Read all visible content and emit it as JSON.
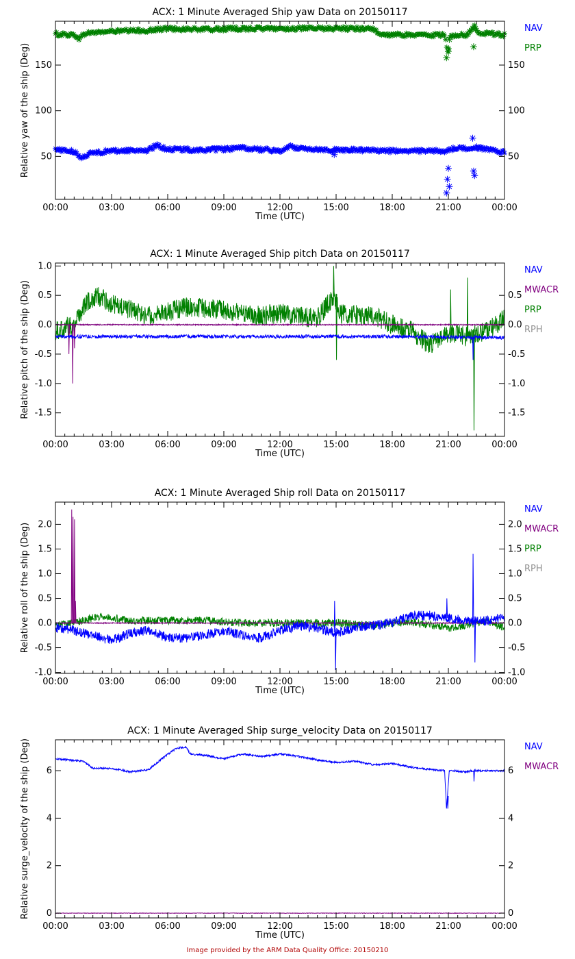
{
  "footer": "Image provided by the ARM Data Quality Office: 20150210",
  "chart_data": [
    {
      "type": "scatter",
      "title": "ACX: 1 Minute Averaged Ship yaw Data on 20150117",
      "xlabel": "Time (UTC)",
      "ylabel": "Relative yaw of the ship (Deg)",
      "xlim": [
        0,
        24
      ],
      "ylim": [
        3,
        198
      ],
      "xticks": [
        "00:00",
        "03:00",
        "06:00",
        "09:00",
        "12:00",
        "15:00",
        "18:00",
        "21:00",
        "00:00"
      ],
      "yticks": [
        50,
        100,
        150
      ],
      "ytick_labels": [
        "50",
        "100",
        "150"
      ],
      "right_ticks": [
        50,
        100,
        150
      ],
      "right_tick_labels": [
        "50",
        "100",
        "150"
      ],
      "legend": [
        "NAV",
        "PRP"
      ],
      "series": [
        {
          "name": "PRP",
          "color": "#008000",
          "marker": "star",
          "noise": 2,
          "points": [
            [
              0,
              184
            ],
            [
              1,
              183
            ],
            [
              1.3,
              179
            ],
            [
              1.6,
              185
            ],
            [
              3,
              187
            ],
            [
              5,
              188
            ],
            [
              6,
              190
            ],
            [
              8,
              189
            ],
            [
              10,
              190
            ],
            [
              12,
              190
            ],
            [
              13,
              190
            ],
            [
              15,
              190
            ],
            [
              17,
              190
            ],
            [
              17.3,
              183
            ],
            [
              19,
              183
            ],
            [
              20.8,
              183
            ],
            [
              21,
              160
            ],
            [
              21.1,
              183
            ],
            [
              22,
              183
            ],
            [
              22.4,
              192
            ],
            [
              22.6,
              186
            ],
            [
              24,
              183
            ]
          ],
          "outliers": [
            [
              20.9,
              158
            ],
            [
              21.0,
              165
            ],
            [
              21.05,
              178
            ],
            [
              22.35,
              170
            ],
            [
              22.4,
              192
            ]
          ]
        },
        {
          "name": "NAV",
          "color": "#0000ff",
          "marker": "star",
          "noise": 2,
          "points": [
            [
              0,
              58
            ],
            [
              1,
              55
            ],
            [
              1.3,
              49
            ],
            [
              2,
              54
            ],
            [
              3,
              56
            ],
            [
              5,
              57
            ],
            [
              5.4,
              62
            ],
            [
              6,
              58
            ],
            [
              8,
              57
            ],
            [
              10,
              59
            ],
            [
              12,
              56
            ],
            [
              12.6,
              61
            ],
            [
              13,
              59
            ],
            [
              15,
              57
            ],
            [
              17,
              57
            ],
            [
              18,
              56
            ],
            [
              20.8,
              56
            ],
            [
              21.1,
              58
            ],
            [
              22.4,
              60
            ],
            [
              24,
              54
            ]
          ],
          "outliers": [
            [
              14.9,
              52
            ],
            [
              20.9,
              10
            ],
            [
              20.95,
              25
            ],
            [
              21.0,
              37
            ],
            [
              21.05,
              17
            ],
            [
              22.3,
              70
            ],
            [
              22.35,
              34
            ],
            [
              22.4,
              29
            ]
          ]
        }
      ]
    },
    {
      "type": "line",
      "title": "ACX: 1 Minute Averaged Ship pitch Data on 20150117",
      "xlabel": "Time (UTC)",
      "ylabel": "Relative pitch of the ship (Deg)",
      "xlim": [
        0,
        24
      ],
      "ylim": [
        -1.9,
        1.05
      ],
      "xticks": [
        "00:00",
        "03:00",
        "06:00",
        "09:00",
        "12:00",
        "15:00",
        "18:00",
        "21:00",
        "00:00"
      ],
      "yticks": [
        1.0,
        0.5,
        0.0,
        -0.5,
        -1.0,
        -1.5
      ],
      "ytick_labels": [
        "1.0",
        "0.5",
        "0.0",
        "-0.5",
        "-1.0",
        "-1.5"
      ],
      "right_ticks": [
        0.5,
        0.0,
        -0.5,
        -1.0,
        -1.5
      ],
      "right_tick_labels": [
        "0.5",
        "0.0",
        "-0.5",
        "-1.0",
        "-1.5"
      ],
      "legend": [
        "NAV",
        "MWACR",
        "PRP",
        "RPH"
      ],
      "series": [
        {
          "name": "RPH",
          "color": "#909090",
          "noise": 0,
          "points": [
            [
              0,
              0
            ],
            [
              24,
              0
            ]
          ]
        },
        {
          "name": "PRP",
          "color": "#008000",
          "noise": 0.17,
          "points": [
            [
              0,
              -0.1
            ],
            [
              0.5,
              -0.05
            ],
            [
              1,
              0
            ],
            [
              1.6,
              0.35
            ],
            [
              2.2,
              0.5
            ],
            [
              3,
              0.35
            ],
            [
              5,
              0.15
            ],
            [
              7,
              0.3
            ],
            [
              9,
              0.25
            ],
            [
              11,
              0.15
            ],
            [
              12,
              0.2
            ],
            [
              14,
              0.1
            ],
            [
              14.9,
              0.5
            ],
            [
              15.2,
              0.2
            ],
            [
              17,
              0.15
            ],
            [
              18,
              0
            ],
            [
              19,
              -0.1
            ],
            [
              20,
              -0.35
            ],
            [
              21,
              -0.15
            ],
            [
              22,
              -0.2
            ],
            [
              23,
              -0.1
            ],
            [
              24,
              0.1
            ]
          ],
          "spikes": [
            [
              14.85,
              1.0
            ],
            [
              15.0,
              -0.6
            ],
            [
              21.1,
              0.6
            ],
            [
              22.0,
              0.8
            ],
            [
              22.35,
              -1.8
            ]
          ]
        },
        {
          "name": "MWACR",
          "color": "#800080",
          "noise": 0.01,
          "points": [
            [
              0,
              0
            ],
            [
              24,
              0
            ]
          ],
          "spikes": [
            [
              0.9,
              -1.0
            ],
            [
              1.0,
              -0.4
            ],
            [
              0.7,
              -0.5
            ]
          ]
        },
        {
          "name": "NAV",
          "color": "#0000ff",
          "noise": 0.03,
          "points": [
            [
              0,
              -0.2
            ],
            [
              6,
              -0.2
            ],
            [
              12,
              -0.2
            ],
            [
              18,
              -0.2
            ],
            [
              24,
              -0.22
            ]
          ],
          "spikes": [
            [
              22.3,
              -0.6
            ]
          ]
        }
      ]
    },
    {
      "type": "line",
      "title": "ACX: 1 Minute Averaged Ship roll Data on 20150117",
      "xlabel": "Time (UTC)",
      "ylabel": "Relative roll of the ship (Deg)",
      "xlim": [
        0,
        24
      ],
      "ylim": [
        -1.02,
        2.45
      ],
      "xticks": [
        "00:00",
        "03:00",
        "06:00",
        "09:00",
        "12:00",
        "15:00",
        "18:00",
        "21:00",
        "00:00"
      ],
      "yticks": [
        2.0,
        1.5,
        1.0,
        0.5,
        0.0,
        -0.5,
        -1.0
      ],
      "ytick_labels": [
        "2.0",
        "1.5",
        "1.0",
        "0.5",
        "0.0",
        "-0.5",
        "-1.0"
      ],
      "right_ticks": [
        2.0,
        1.5,
        1.0,
        0.5,
        0.0,
        -0.5,
        -1.0
      ],
      "right_tick_labels": [
        "2.0",
        "1.5",
        "1.0",
        "0.5",
        "0.0",
        "-0.5",
        "-1.0"
      ],
      "legend": [
        "NAV",
        "MWACR",
        "PRP",
        "RPH"
      ],
      "series": [
        {
          "name": "RPH",
          "color": "#909090",
          "noise": 0,
          "points": [
            [
              0,
              0
            ],
            [
              24,
              0
            ]
          ]
        },
        {
          "name": "PRP",
          "color": "#008000",
          "noise": 0.08,
          "points": [
            [
              0,
              -0.05
            ],
            [
              1.5,
              0.05
            ],
            [
              2.5,
              0.15
            ],
            [
              4,
              0.05
            ],
            [
              6,
              0.05
            ],
            [
              8,
              0.05
            ],
            [
              10,
              0
            ],
            [
              12,
              0
            ],
            [
              15,
              0
            ],
            [
              17,
              -0.05
            ],
            [
              18,
              0
            ],
            [
              19,
              0.02
            ],
            [
              21,
              -0.1
            ],
            [
              22,
              -0.05
            ],
            [
              23,
              0.05
            ],
            [
              24,
              -0.1
            ]
          ]
        },
        {
          "name": "MWACR",
          "color": "#800080",
          "noise": 0.01,
          "points": [
            [
              0,
              0
            ],
            [
              24,
              0
            ]
          ],
          "spikes": [
            [
              0.85,
              2.3
            ],
            [
              0.92,
              2.15
            ],
            [
              1.0,
              2.1
            ],
            [
              1.05,
              0.45
            ]
          ]
        },
        {
          "name": "NAV",
          "color": "#0000ff",
          "noise": 0.1,
          "points": [
            [
              0,
              -0.1
            ],
            [
              1,
              -0.15
            ],
            [
              2,
              -0.25
            ],
            [
              3,
              -0.35
            ],
            [
              4,
              -0.2
            ],
            [
              5,
              -0.15
            ],
            [
              6,
              -0.3
            ],
            [
              7,
              -0.3
            ],
            [
              8,
              -0.25
            ],
            [
              9,
              -0.15
            ],
            [
              10,
              -0.25
            ],
            [
              11,
              -0.3
            ],
            [
              12,
              -0.15
            ],
            [
              13,
              -0.05
            ],
            [
              14,
              -0.1
            ],
            [
              15,
              -0.2
            ],
            [
              16,
              -0.1
            ],
            [
              17,
              -0.05
            ],
            [
              18,
              0
            ],
            [
              19,
              0.15
            ],
            [
              20,
              0.15
            ],
            [
              21,
              0.1
            ],
            [
              22,
              0.05
            ],
            [
              23,
              0.05
            ],
            [
              24,
              0.1
            ]
          ],
          "spikes": [
            [
              14.9,
              0.45
            ],
            [
              14.95,
              -0.95
            ],
            [
              20.9,
              0.5
            ],
            [
              22.3,
              1.4
            ],
            [
              22.4,
              -0.8
            ]
          ]
        }
      ]
    },
    {
      "type": "line",
      "title": "ACX: 1 Minute Averaged Ship surge_velocity Data on 20150117",
      "xlabel": "Time (UTC)",
      "ylabel": "Relative surge_velocity of the ship (Deg)",
      "xlim": [
        0,
        24
      ],
      "ylim": [
        -0.2,
        7.3
      ],
      "xticks": [
        "00:00",
        "03:00",
        "06:00",
        "09:00",
        "12:00",
        "15:00",
        "18:00",
        "21:00",
        "00:00"
      ],
      "yticks": [
        0,
        2,
        4,
        6
      ],
      "ytick_labels": [
        "0",
        "2",
        "4",
        "6"
      ],
      "right_ticks": [
        0,
        2,
        4,
        6
      ],
      "right_tick_labels": [
        "0",
        "2",
        "4",
        "6"
      ],
      "legend": [
        "NAV",
        "MWACR"
      ],
      "series": [
        {
          "name": "MWACR",
          "color": "#800080",
          "noise": 0.01,
          "points": [
            [
              0,
              0
            ],
            [
              24,
              0
            ]
          ]
        },
        {
          "name": "NAV",
          "color": "#0000ff",
          "noise": 0.04,
          "points": [
            [
              0,
              6.5
            ],
            [
              1.5,
              6.4
            ],
            [
              2,
              6.1
            ],
            [
              3,
              6.1
            ],
            [
              4,
              5.95
            ],
            [
              5,
              6.05
            ],
            [
              6,
              6.7
            ],
            [
              6.5,
              6.95
            ],
            [
              7,
              7.0
            ],
            [
              7.2,
              6.7
            ],
            [
              8,
              6.65
            ],
            [
              9,
              6.5
            ],
            [
              10,
              6.7
            ],
            [
              11,
              6.6
            ],
            [
              12,
              6.7
            ],
            [
              13,
              6.6
            ],
            [
              14,
              6.45
            ],
            [
              15,
              6.35
            ],
            [
              16,
              6.4
            ],
            [
              17,
              6.25
            ],
            [
              18,
              6.3
            ],
            [
              19,
              6.15
            ],
            [
              20,
              6.05
            ],
            [
              20.8,
              6.0
            ],
            [
              20.9,
              4.4
            ],
            [
              21.05,
              6.0
            ],
            [
              22,
              5.95
            ],
            [
              22.3,
              6.0
            ],
            [
              24,
              6.0
            ]
          ],
          "spikes": [
            [
              20.95,
              4.4
            ],
            [
              22.35,
              5.55
            ]
          ]
        }
      ]
    }
  ]
}
